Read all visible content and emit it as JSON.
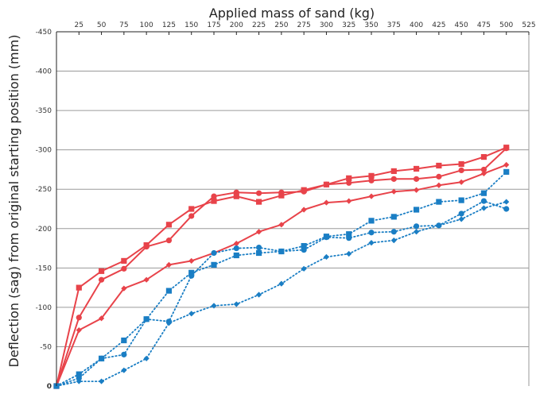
{
  "chart_data": {
    "type": "line",
    "title": "",
    "xlabel": "Applied mass of sand (kg)",
    "ylabel": "Deflection (sag) from original starting position (mm)",
    "xlim": [
      0,
      525
    ],
    "ylim": [
      -450,
      0
    ],
    "xticks": [
      25,
      50,
      75,
      100,
      125,
      150,
      175,
      200,
      225,
      250,
      275,
      300,
      325,
      350,
      375,
      400,
      425,
      450,
      475,
      500,
      525
    ],
    "yticks": [
      0,
      -50,
      -100,
      -150,
      -200,
      -250,
      -300,
      -350,
      -400,
      -450
    ],
    "grid": "horizontal",
    "legend": "none",
    "colors": {
      "red": "#e8434a",
      "blue": "#1a7ec4"
    },
    "series": [
      {
        "color": "#e8434a",
        "marker": "diamond",
        "line": "solid",
        "x": [
          0,
          25,
          50,
          75,
          100,
          125,
          150,
          175,
          200,
          225,
          250,
          275,
          300,
          325,
          350,
          375,
          400,
          425,
          450,
          475,
          500
        ],
        "y": [
          0,
          -71,
          -86,
          -124,
          -135,
          -154,
          -159,
          -169,
          -181,
          -196,
          -205,
          -224,
          -233,
          -235,
          -241,
          -247,
          -249,
          -255,
          -259,
          -270,
          -281
        ]
      },
      {
        "color": "#e8434a",
        "marker": "circle",
        "line": "solid",
        "x": [
          0,
          25,
          50,
          75,
          100,
          125,
          150,
          175,
          200,
          225,
          250,
          275,
          300,
          325,
          350,
          375,
          400,
          425,
          450,
          475,
          500
        ],
        "y": [
          0,
          -87,
          -135,
          -149,
          -177,
          -185,
          -216,
          -241,
          -246,
          -245,
          -246,
          -247,
          -256,
          -258,
          -261,
          -263,
          -263,
          -266,
          -274,
          -275,
          -302
        ]
      },
      {
        "color": "#e8434a",
        "marker": "square",
        "line": "solid",
        "x": [
          0,
          25,
          50,
          75,
          100,
          125,
          150,
          175,
          200,
          225,
          250,
          275,
          300,
          325,
          350,
          375,
          400,
          425,
          450,
          475,
          500
        ],
        "y": [
          0,
          -125,
          -146,
          -159,
          -179,
          -205,
          -225,
          -235,
          -241,
          -234,
          -242,
          -249,
          -256,
          -264,
          -267,
          -273,
          -276,
          -280,
          -282,
          -291,
          -303
        ]
      },
      {
        "color": "#1a7ec4",
        "marker": "diamond",
        "line": "dotted",
        "x": [
          0,
          25,
          50,
          75,
          100,
          125,
          150,
          175,
          200,
          225,
          250,
          275,
          300,
          325,
          350,
          375,
          400,
          425,
          450,
          475,
          500
        ],
        "y": [
          0,
          -6,
          -6,
          -20,
          -35,
          -80,
          -92,
          -102,
          -104,
          -116,
          -130,
          -149,
          -164,
          -168,
          -182,
          -185,
          -196,
          -204,
          -212,
          -226,
          -234
        ]
      },
      {
        "color": "#1a7ec4",
        "marker": "circle",
        "line": "dotted",
        "x": [
          0,
          25,
          50,
          75,
          100,
          125,
          150,
          175,
          200,
          225,
          250,
          275,
          300,
          325,
          350,
          375,
          400,
          425,
          450,
          475,
          500
        ],
        "y": [
          0,
          -10,
          -35,
          -40,
          -85,
          -82,
          -140,
          -169,
          -175,
          -176,
          -171,
          -173,
          -189,
          -188,
          -195,
          -196,
          -203,
          -204,
          -219,
          -235,
          -225
        ]
      },
      {
        "color": "#1a7ec4",
        "marker": "square",
        "line": "dotted",
        "x": [
          0,
          25,
          50,
          75,
          100,
          125,
          150,
          175,
          200,
          225,
          250,
          275,
          300,
          325,
          350,
          375,
          400,
          425,
          450,
          475,
          500
        ],
        "y": [
          0,
          -15,
          -35,
          -58,
          -85,
          -121,
          -144,
          -154,
          -166,
          -169,
          -171,
          -178,
          -190,
          -193,
          -210,
          -215,
          -224,
          -234,
          -236,
          -245,
          -272
        ]
      }
    ]
  }
}
